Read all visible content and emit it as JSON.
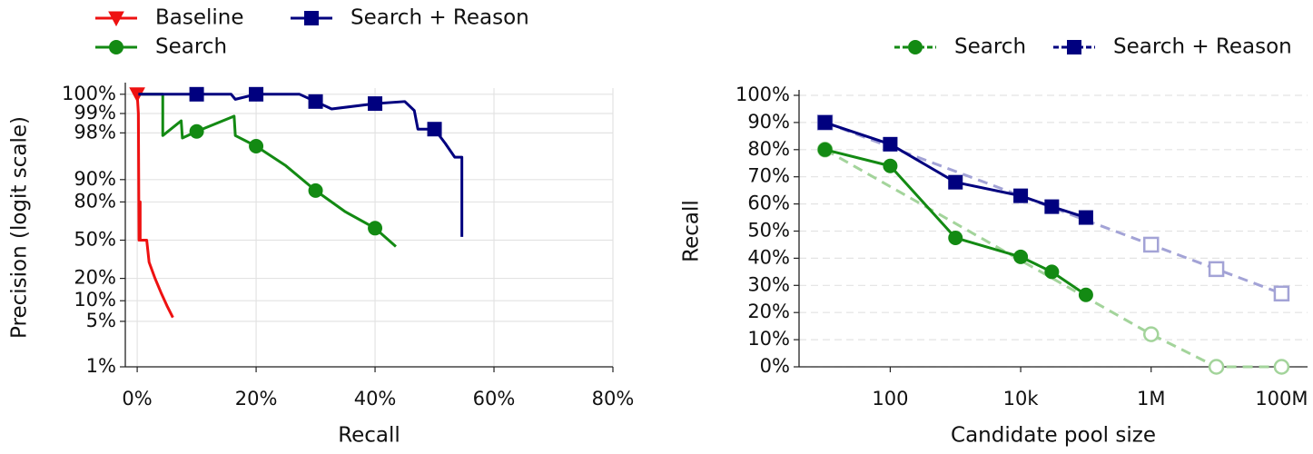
{
  "chart_data": [
    {
      "type": "line",
      "xscale": "linear",
      "yscale": "logit",
      "xlabel": "Recall",
      "ylabel": "Precision (logit scale)",
      "xlim": [
        -2,
        80
      ],
      "xticks": [
        {
          "value": 0,
          "label": "0%"
        },
        {
          "value": 20,
          "label": "20%"
        },
        {
          "value": 40,
          "label": "40%"
        },
        {
          "value": 60,
          "label": "60%"
        },
        {
          "value": 80,
          "label": "80%"
        }
      ],
      "ylim": [
        1,
        99.6
      ],
      "yticks": [
        {
          "value": 1,
          "label": "1%"
        },
        {
          "value": 5,
          "label": "5%"
        },
        {
          "value": 10,
          "label": "10%"
        },
        {
          "value": 20,
          "label": "20%"
        },
        {
          "value": 50,
          "label": "50%"
        },
        {
          "value": 80,
          "label": "80%"
        },
        {
          "value": 90,
          "label": "90%"
        },
        {
          "value": 98,
          "label": "98%"
        },
        {
          "value": 99,
          "label": "99%"
        },
        {
          "value": 99.5,
          "label": "100%"
        }
      ],
      "grid": "both",
      "grid_linestyle": "solid",
      "legend": "upper left",
      "legend_columns": 2,
      "series": [
        {
          "name": "Baseline",
          "color": "#ee1111",
          "marker": "triangle-down",
          "linestyle": "solid",
          "marker_fill": "solid",
          "x": [
            0,
            0.2,
            0.3,
            0.5,
            0.5,
            1.6,
            2,
            3,
            4,
            5,
            6
          ],
          "values": [
            99.5,
            99,
            50,
            80,
            50,
            50,
            31,
            20,
            13,
            8.5,
            5.7
          ]
        },
        {
          "name": "Search",
          "color": "#138a13",
          "marker": "circle",
          "linestyle": "solid",
          "marker_fill": "solid",
          "x": [
            0.2,
            4.3,
            4.3,
            7.4,
            7.6,
            10,
            16.3,
            16.5,
            20,
            25,
            30,
            35,
            40,
            43.5
          ],
          "values": [
            99.5,
            99.5,
            97.8,
            98.7,
            97.6,
            98.1,
            98.9,
            97.8,
            96.8,
            93.7,
            85.8,
            73.7,
            60.7,
            44.3
          ]
        },
        {
          "name": "Search + Reason",
          "color": "#00007f",
          "marker": "square",
          "linestyle": "solid",
          "marker_fill": "solid",
          "x": [
            0.2,
            10,
            15.8,
            16.5,
            20,
            27.3,
            30,
            32.7,
            40,
            45,
            46.6,
            47.2,
            50,
            51.8,
            53.4,
            54.6,
            54.6
          ],
          "values": [
            99.5,
            99.5,
            99.5,
            99.4,
            99.5,
            99.5,
            99.35,
            99.15,
            99.3,
            99.35,
            99.1,
            98.25,
            98.25,
            97.1,
            95.3,
            95.3,
            53
          ]
        }
      ]
    },
    {
      "type": "line",
      "xscale": "log",
      "yscale": "linear",
      "xlabel": "Candidate pool size",
      "ylabel": "Recall",
      "xlim": [
        4,
        250000000
      ],
      "xticks": [
        100,
        {
          "value": 10000,
          "label": "10k"
        },
        {
          "value": 1000000,
          "label": "1M"
        },
        {
          "value": 100000000,
          "label": "100M"
        }
      ],
      "ylim": [
        0,
        100
      ],
      "yticks": [
        {
          "value": 0,
          "label": "0%"
        },
        {
          "value": 10,
          "label": "10%"
        },
        {
          "value": 20,
          "label": "20%"
        },
        {
          "value": 30,
          "label": "30%"
        },
        {
          "value": 40,
          "label": "40%"
        },
        {
          "value": 50,
          "label": "50%"
        },
        {
          "value": 60,
          "label": "60%"
        },
        {
          "value": 70,
          "label": "70%"
        },
        {
          "value": 80,
          "label": "80%"
        },
        {
          "value": 90,
          "label": "90%"
        },
        {
          "value": 100,
          "label": "100%"
        }
      ],
      "grid": "y",
      "grid_linestyle": "dashed",
      "legend": "upper center",
      "legend_columns": 2,
      "series": [
        {
          "color": "#a3d49b",
          "marker": "circle",
          "linestyle": "dashed",
          "marker_fill": "none",
          "x": [
            10,
            1000000,
            10000000,
            100000000
          ],
          "values": [
            80,
            12,
            0,
            0
          ]
        },
        {
          "color": "#a3a3d6",
          "marker": "square",
          "linestyle": "dashed",
          "marker_fill": "none",
          "x": [
            10,
            1000000,
            10000000,
            100000000
          ],
          "values": [
            90,
            45,
            36,
            27
          ]
        },
        {
          "name": "Search",
          "color": "#138a13",
          "marker": "circle",
          "linestyle": "solid",
          "marker_fill": "solid",
          "x": [
            10,
            100,
            1000,
            10000,
            30000,
            100000
          ],
          "values": [
            80,
            74,
            47.5,
            40.5,
            35,
            26.5
          ]
        },
        {
          "name": "Search + Reason",
          "color": "#00007f",
          "marker": "square",
          "linestyle": "solid",
          "marker_fill": "solid",
          "x": [
            10,
            100,
            1000,
            10000,
            30000,
            100000
          ],
          "values": [
            90,
            82,
            68,
            63,
            59,
            55
          ]
        }
      ]
    }
  ]
}
